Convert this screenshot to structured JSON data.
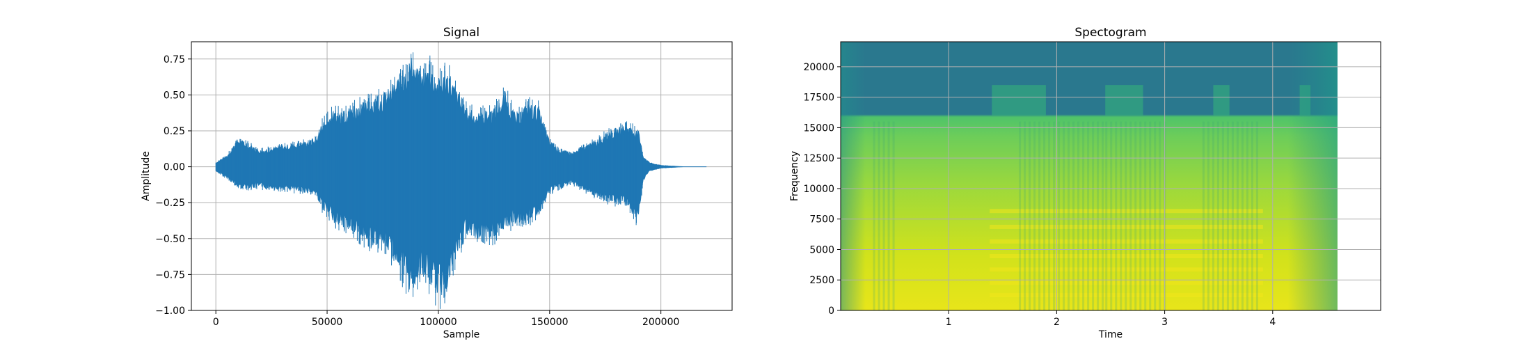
{
  "chart_data": [
    {
      "type": "line",
      "title": "Signal",
      "xlabel": "Sample",
      "ylabel": "Amplitude",
      "xlim": [
        -11000,
        232000
      ],
      "ylim": [
        -1.0,
        0.87
      ],
      "grid": true,
      "color": "#1f77b4",
      "x_ticks": [
        0,
        50000,
        100000,
        150000,
        200000
      ],
      "x_tick_labels": [
        "0",
        "50000",
        "100000",
        "150000",
        "200000"
      ],
      "y_ticks": [
        -1.0,
        -0.75,
        -0.5,
        -0.25,
        0.0,
        0.25,
        0.5,
        0.75
      ],
      "y_tick_labels": [
        "−1.00",
        "−0.75",
        "−0.50",
        "−0.25",
        "0.00",
        "0.25",
        "0.50",
        "0.75"
      ],
      "series": [
        {
          "x": [
            0,
            5000,
            10000,
            20000,
            30000,
            40000,
            45000,
            48000,
            52000,
            60000,
            70000,
            78000,
            85000,
            88000,
            92000,
            96000,
            100000,
            104000,
            108000,
            112000,
            118000,
            125000,
            130000,
            135000,
            140000,
            145000,
            150000,
            155000,
            160000,
            170000,
            178000,
            185000,
            190000,
            192000,
            195000,
            200000,
            210000,
            220500
          ],
          "upper": [
            0.03,
            0.08,
            0.2,
            0.12,
            0.15,
            0.18,
            0.2,
            0.32,
            0.38,
            0.42,
            0.47,
            0.55,
            0.7,
            0.78,
            0.65,
            0.72,
            0.62,
            0.68,
            0.55,
            0.42,
            0.38,
            0.41,
            0.52,
            0.36,
            0.45,
            0.42,
            0.18,
            0.12,
            0.1,
            0.18,
            0.26,
            0.3,
            0.25,
            0.08,
            0.03,
            0.01,
            0.0,
            0.0
          ],
          "lower": [
            -0.03,
            -0.08,
            -0.15,
            -0.15,
            -0.16,
            -0.18,
            -0.2,
            -0.3,
            -0.38,
            -0.45,
            -0.55,
            -0.6,
            -0.8,
            -0.9,
            -0.75,
            -0.82,
            -0.92,
            -0.85,
            -0.65,
            -0.5,
            -0.5,
            -0.5,
            -0.42,
            -0.4,
            -0.38,
            -0.35,
            -0.18,
            -0.15,
            -0.12,
            -0.2,
            -0.25,
            -0.28,
            -0.4,
            -0.1,
            -0.03,
            -0.01,
            0.0,
            0.0
          ]
        }
      ]
    },
    {
      "type": "heatmap",
      "title": "Spectogram",
      "xlabel": "Time",
      "ylabel": "Frequency",
      "xlim": [
        0,
        5.0
      ],
      "ylim": [
        0,
        22050
      ],
      "data_extent_x": [
        0,
        4.6
      ],
      "grid": true,
      "colormap": "viridis",
      "x_ticks": [
        1,
        2,
        3,
        4
      ],
      "x_tick_labels": [
        "1",
        "2",
        "3",
        "4"
      ],
      "y_ticks": [
        0,
        2500,
        5000,
        7500,
        10000,
        12500,
        15000,
        17500,
        20000
      ],
      "y_tick_labels": [
        "0",
        "2500",
        "5000",
        "7500",
        "10000",
        "12500",
        "15000",
        "17500",
        "20000"
      ]
    }
  ]
}
